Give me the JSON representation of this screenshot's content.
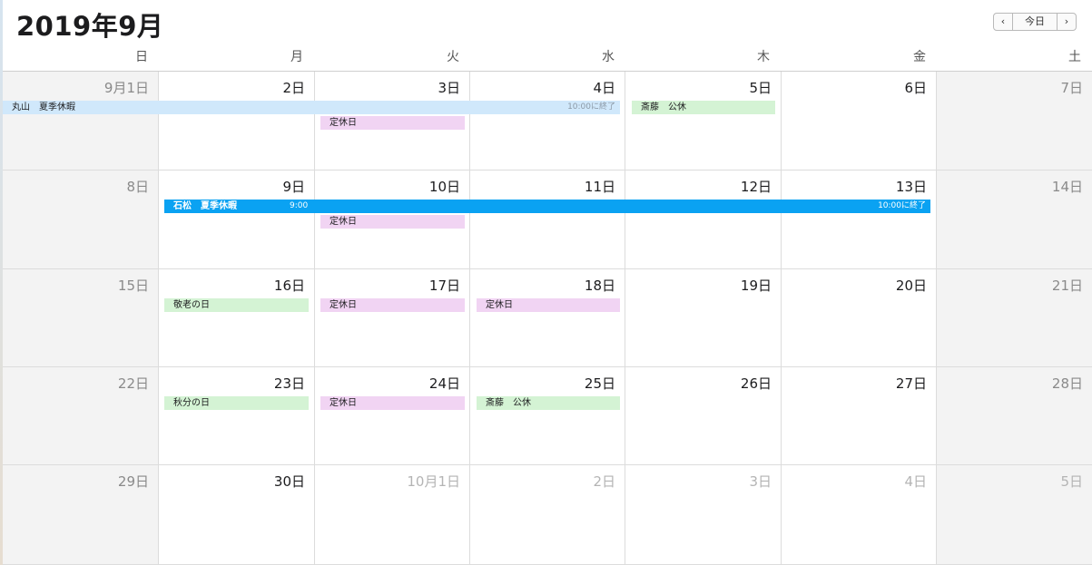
{
  "header": {
    "title": "2019年9月",
    "prev_icon": "‹",
    "today_label": "今日",
    "next_icon": "›"
  },
  "weekdays": [
    "日",
    "月",
    "火",
    "水",
    "木",
    "金",
    "土"
  ],
  "weeks": [
    [
      "9月1日",
      "2日",
      "3日",
      "4日",
      "5日",
      "6日",
      "7日"
    ],
    [
      "8日",
      "9日",
      "10日",
      "11日",
      "12日",
      "13日",
      "14日"
    ],
    [
      "15日",
      "16日",
      "17日",
      "18日",
      "19日",
      "20日",
      "21日"
    ],
    [
      "22日",
      "23日",
      "24日",
      "25日",
      "26日",
      "27日",
      "28日"
    ],
    [
      "29日",
      "30日",
      "10月1日",
      "2日",
      "3日",
      "4日",
      "5日"
    ]
  ],
  "events": {
    "maruyama": {
      "title": "丸山　夏季休暇",
      "end": "10:00に終了"
    },
    "w1_tue": {
      "title": "定休日"
    },
    "w1_thu": {
      "title": "斎藤　公休"
    },
    "ishimatsu": {
      "title": "石松　夏季休暇",
      "time": "9:00",
      "end": "10:00に終了"
    },
    "w2_tue": {
      "title": "定休日"
    },
    "w3_mon": {
      "title": "敬老の日"
    },
    "w3_tue": {
      "title": "定休日"
    },
    "w3_wed": {
      "title": "定休日"
    },
    "w4_mon": {
      "title": "秋分の日"
    },
    "w4_tue": {
      "title": "定休日"
    },
    "w4_wed": {
      "title": "斎藤　公休"
    }
  },
  "colors": {
    "vacation_light": "#d0e8fb",
    "vacation_dark": "#0aa2f2",
    "closed_day": "#f1d4f3",
    "holiday": "#d4f3d4",
    "weekend_bg": "#f3f3f3"
  }
}
